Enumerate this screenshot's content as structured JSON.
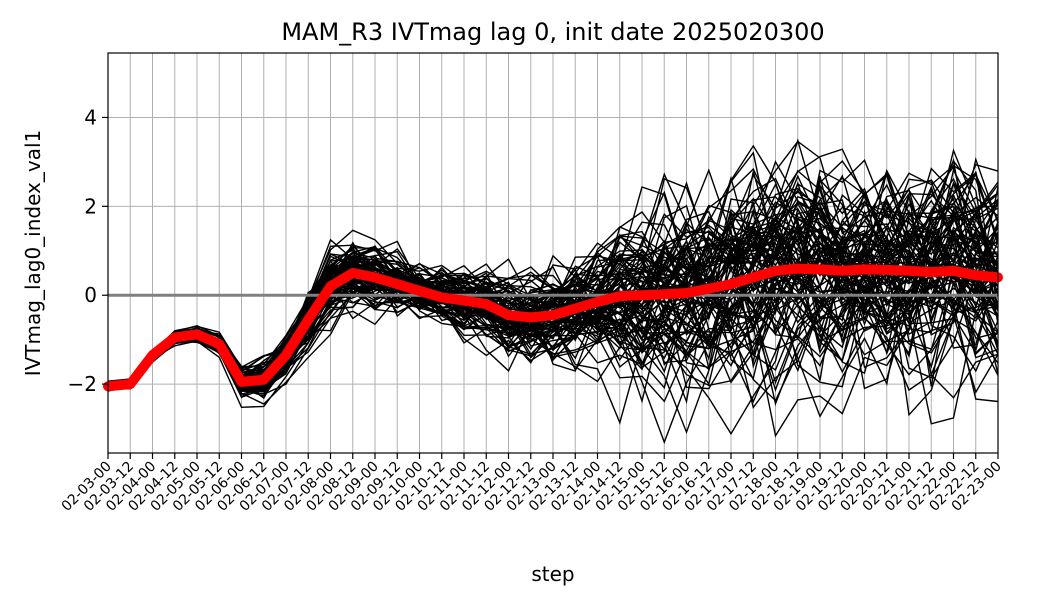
{
  "chart_data": {
    "type": "line",
    "title": "MAM_R3 IVTmag lag 0, init date 2025020300",
    "xlabel": "step",
    "ylabel": "IVTmag_lag0_index_val1",
    "x": [
      "02-03-00",
      "02-03-12",
      "02-04-00",
      "02-04-12",
      "02-05-00",
      "02-05-12",
      "02-06-00",
      "02-06-12",
      "02-07-00",
      "02-07-12",
      "02-08-00",
      "02-08-12",
      "02-09-00",
      "02-09-12",
      "02-10-00",
      "02-10-12",
      "02-11-00",
      "02-11-12",
      "02-12-00",
      "02-12-12",
      "02-13-00",
      "02-13-12",
      "02-14-00",
      "02-14-12",
      "02-15-00",
      "02-15-12",
      "02-16-00",
      "02-16-12",
      "02-17-00",
      "02-17-12",
      "02-18-00",
      "02-18-12",
      "02-19-00",
      "02-19-12",
      "02-20-00",
      "02-20-12",
      "02-21-00",
      "02-21-12",
      "02-22-00",
      "02-22-12",
      "02-23-00"
    ],
    "ylim": [
      -3.55,
      5.45
    ],
    "yticks": [
      -2,
      0,
      2,
      4
    ],
    "grid": true,
    "zero_line": 0,
    "ensemble_color": "#000000",
    "mean_color": "#ff0000",
    "zero_line_color": "#808080",
    "ensemble_members": 100,
    "ensemble_spread": [
      0.05,
      0.05,
      0.06,
      0.07,
      0.08,
      0.1,
      0.15,
      0.2,
      0.2,
      0.3,
      0.35,
      0.35,
      0.35,
      0.3,
      0.3,
      0.3,
      0.35,
      0.4,
      0.45,
      0.45,
      0.5,
      0.55,
      0.65,
      0.75,
      0.85,
      0.9,
      1.0,
      1.05,
      1.1,
      1.15,
      1.2,
      1.2,
      1.2,
      1.15,
      1.15,
      1.1,
      1.05,
      1.05,
      1.05,
      1.05,
      1.05
    ],
    "ensemble_mean": [
      -2.05,
      -2.0,
      -1.35,
      -0.95,
      -0.88,
      -1.1,
      -1.95,
      -1.9,
      -1.35,
      -0.55,
      0.2,
      0.5,
      0.4,
      0.25,
      0.1,
      -0.05,
      -0.12,
      -0.2,
      -0.45,
      -0.5,
      -0.45,
      -0.3,
      -0.15,
      -0.02,
      0.0,
      0.02,
      0.05,
      0.15,
      0.25,
      0.4,
      0.55,
      0.6,
      0.58,
      0.55,
      0.58,
      0.57,
      0.55,
      0.52,
      0.55,
      0.45,
      0.4
    ]
  }
}
